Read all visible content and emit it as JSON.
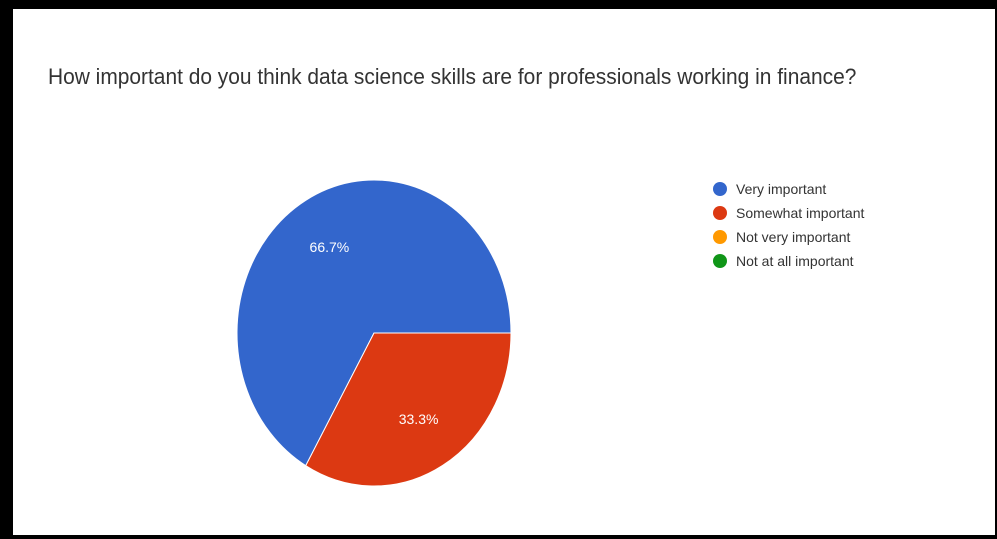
{
  "chart_data": {
    "type": "pie",
    "title": "How important do you think data science skills are for professionals working in finance?",
    "categories": [
      "Very important",
      "Somewhat important",
      "Not very important",
      "Not at all important"
    ],
    "values": [
      66.7,
      33.3,
      0,
      0
    ],
    "slice_labels": [
      "66.7%",
      "33.3%",
      "",
      ""
    ],
    "colors": [
      "#3366CC",
      "#DC3912",
      "#FF9900",
      "#109618"
    ],
    "legend_position": "right"
  }
}
